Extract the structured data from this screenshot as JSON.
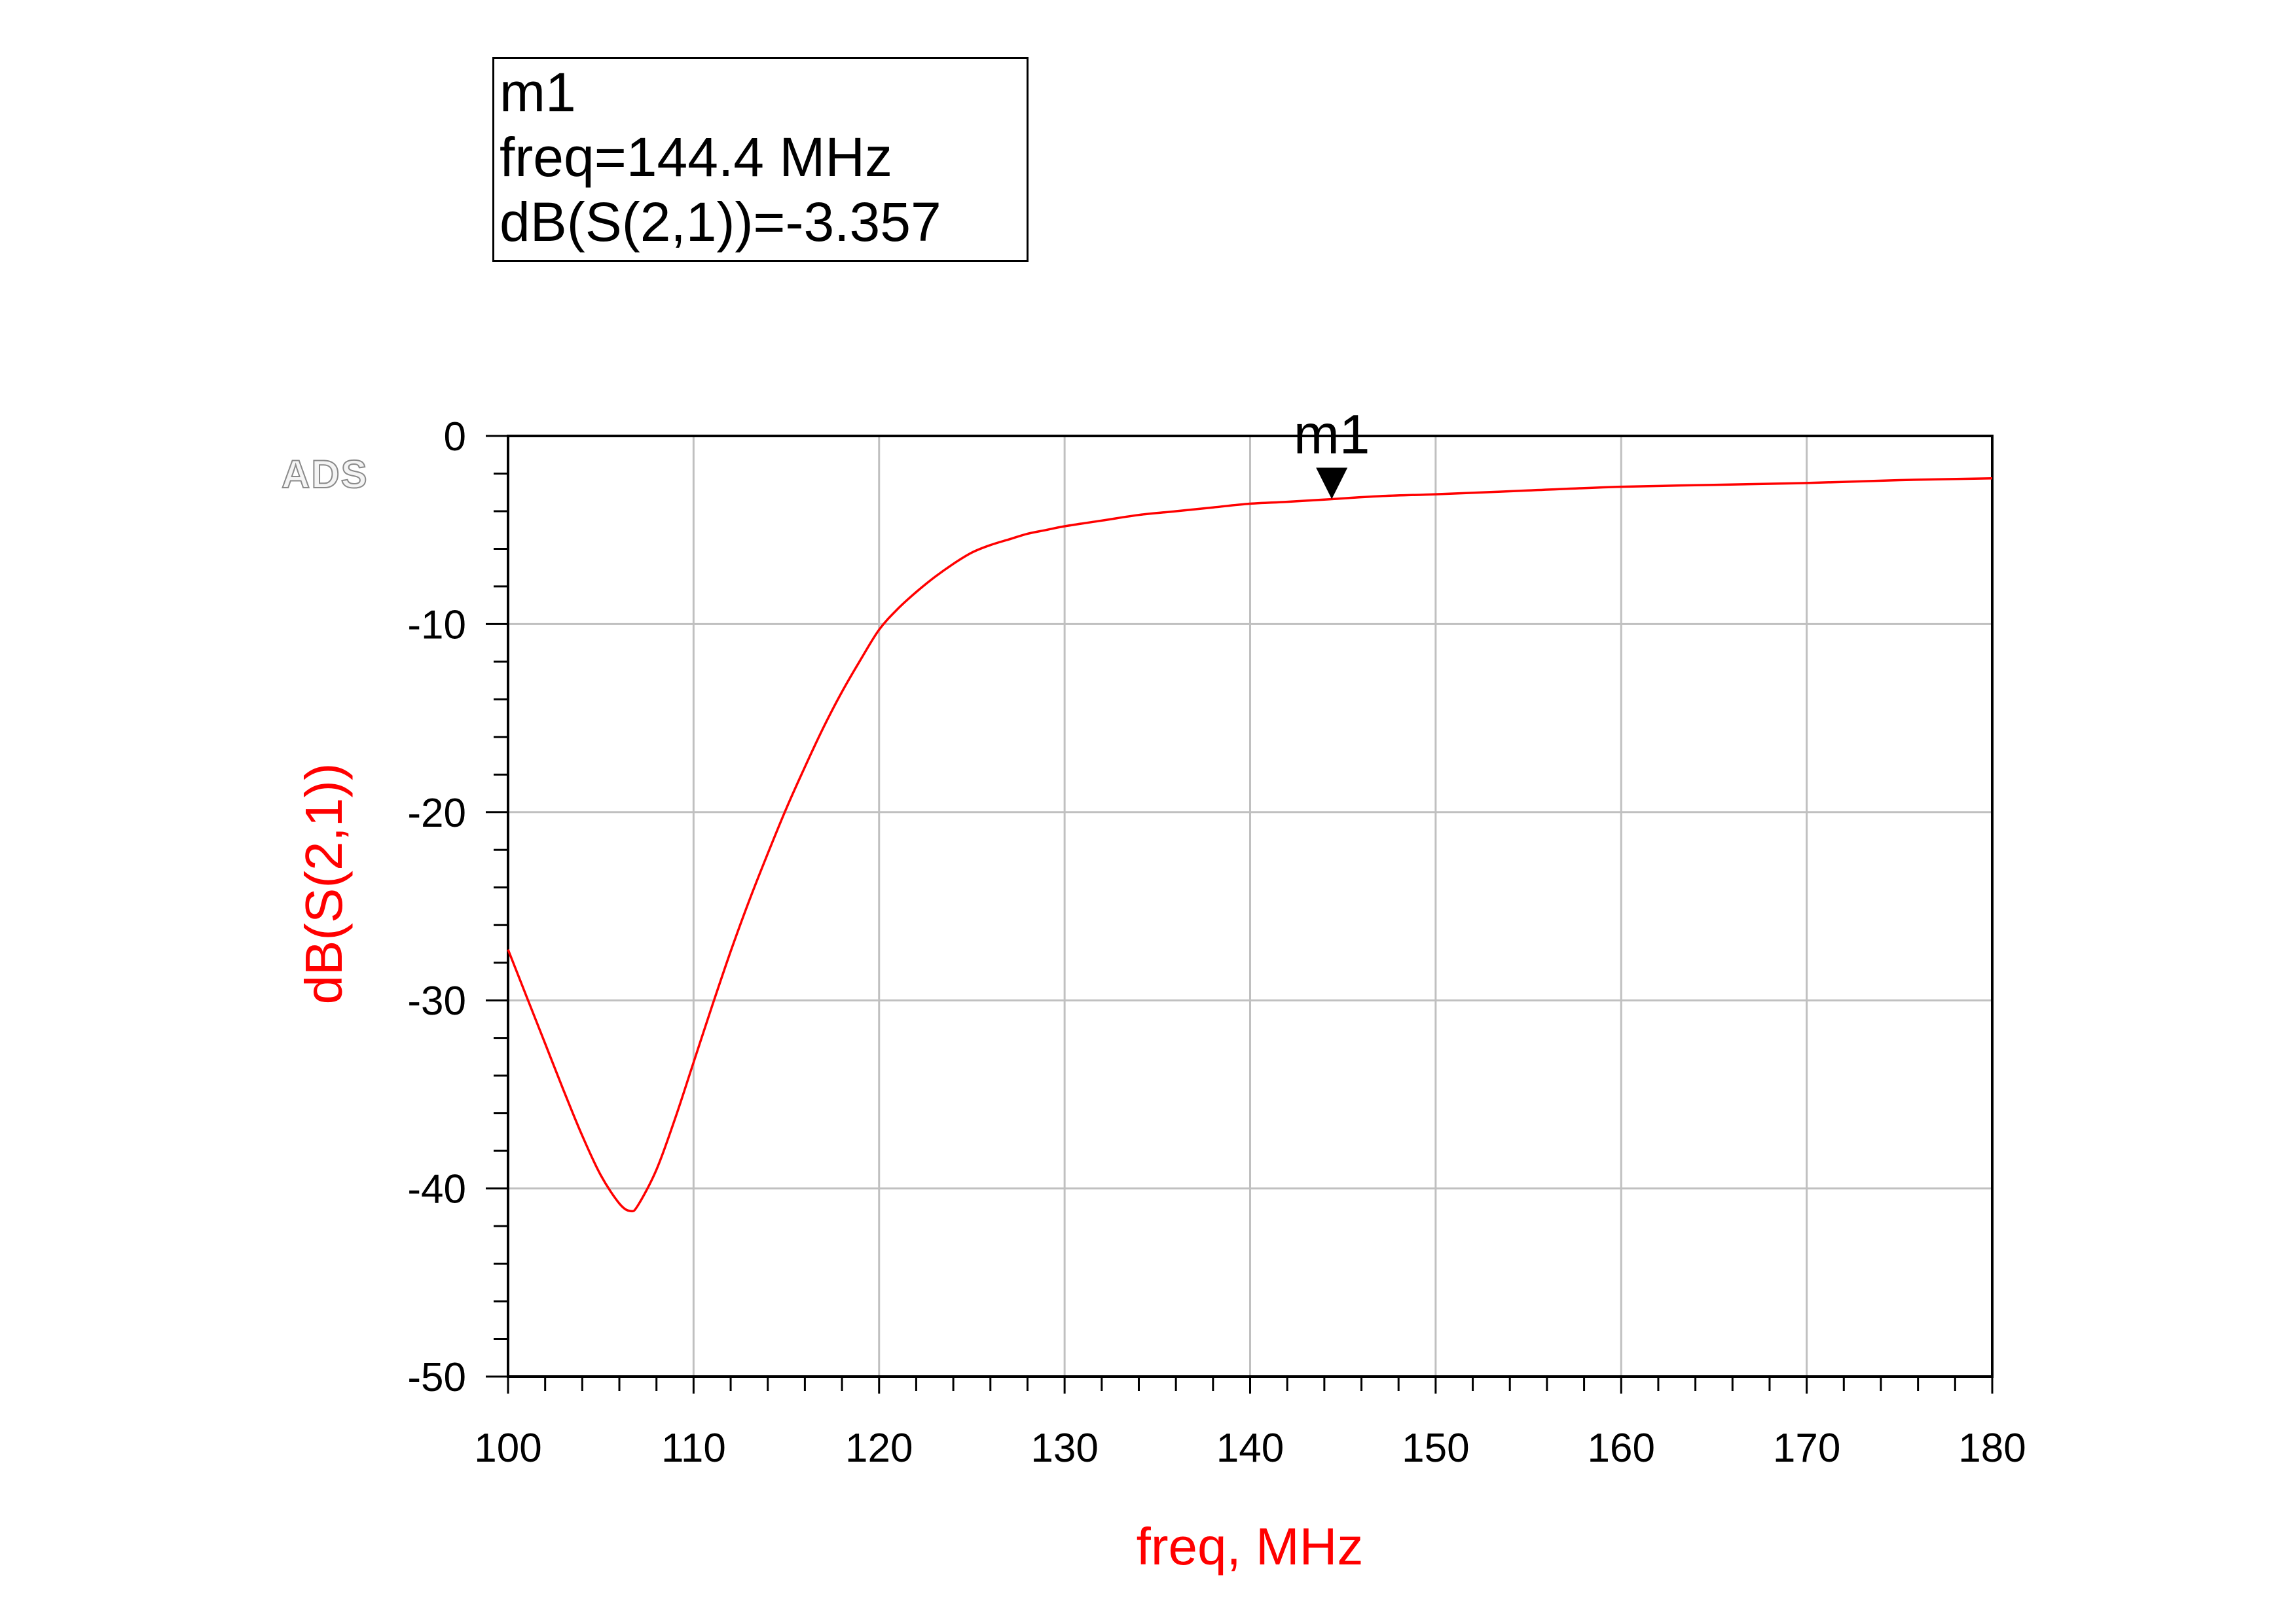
{
  "marker_box": {
    "name": "m1",
    "freq_line": "freq=144.4 MHz",
    "value_line": "dB(S(2,1))=-3.357"
  },
  "logo_text": "ADS",
  "colors": {
    "trace": "#ff0000",
    "grid": "#c0c0c0",
    "axis": "#000000",
    "ylabel": "#ff0000",
    "xlabel": "#ff0000"
  },
  "chart_data": {
    "type": "line",
    "title": "",
    "xlabel": "freq, MHz",
    "ylabel": "dB(S(2,1))",
    "xlim": [
      100,
      180
    ],
    "ylim": [
      -50,
      0
    ],
    "x_ticks": [
      100,
      110,
      120,
      130,
      140,
      150,
      160,
      170,
      180
    ],
    "x_tick_labels": [
      "100",
      "110",
      "120",
      "130",
      "140",
      "150",
      "160",
      "170",
      "180"
    ],
    "y_ticks": [
      0,
      -10,
      -20,
      -30,
      -40,
      -50
    ],
    "y_tick_labels": [
      "0",
      "-10",
      "-20",
      "-30",
      "-40",
      "-50"
    ],
    "grid": true,
    "series": [
      {
        "x": [
          100,
          101,
          102,
          103,
          104,
          105,
          106,
          106.6,
          107,
          108,
          109,
          110,
          111,
          112,
          113,
          114,
          115,
          116,
          117,
          118,
          119,
          120,
          121,
          122,
          123,
          124,
          125,
          126,
          127,
          128,
          129,
          130,
          132,
          134,
          136,
          138,
          140,
          142,
          144.4,
          147,
          150,
          155,
          160,
          165,
          170,
          175,
          180
        ],
        "y": [
          -27.3,
          -29.8,
          -32.3,
          -34.8,
          -37.2,
          -39.3,
          -40.8,
          -41.2,
          -40.9,
          -39.0,
          -36.3,
          -33.3,
          -30.3,
          -27.4,
          -24.7,
          -22.2,
          -19.8,
          -17.6,
          -15.5,
          -13.6,
          -11.9,
          -10.3,
          -9.2,
          -8.3,
          -7.5,
          -6.8,
          -6.2,
          -5.8,
          -5.5,
          -5.2,
          -5.0,
          -4.8,
          -4.5,
          -4.2,
          -4.0,
          -3.8,
          -3.6,
          -3.5,
          -3.357,
          -3.2,
          -3.1,
          -2.9,
          -2.7,
          -2.6,
          -2.5,
          -2.35,
          -2.25
        ]
      }
    ],
    "markers": [
      {
        "name": "m1",
        "x": 144.4,
        "y": -3.357
      }
    ]
  }
}
